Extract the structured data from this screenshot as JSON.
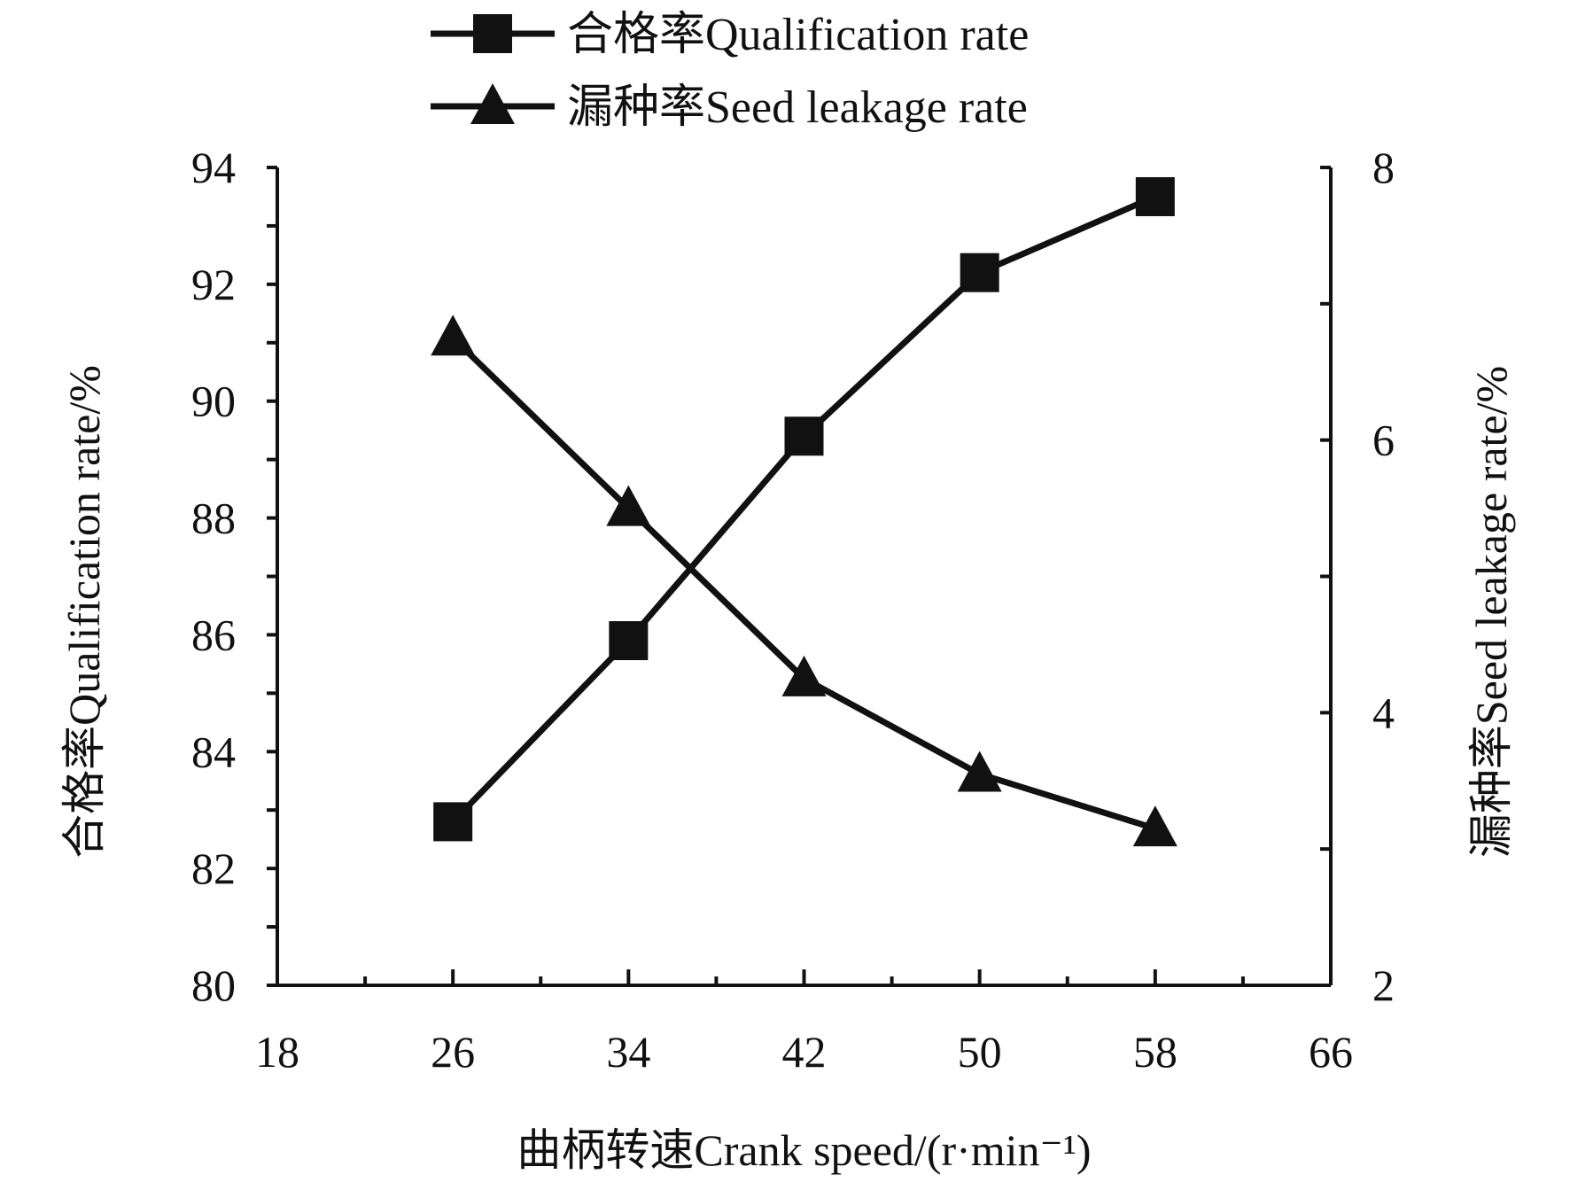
{
  "chart_data": {
    "type": "line",
    "xlabel": "曲柄转速Crank speed/(r·min⁻¹)",
    "ylabel_left": "合格率Qualification rate/%",
    "ylabel_right": "漏种率Seed leakage rate/%",
    "x_ticks": [
      "18",
      "26",
      "34",
      "42",
      "50",
      "58",
      "66"
    ],
    "y_left_ticks": [
      "80",
      "82",
      "84",
      "86",
      "88",
      "90",
      "92",
      "94"
    ],
    "y_right_ticks": [
      "2",
      "4",
      "6",
      "8"
    ],
    "xlim": [
      18,
      66
    ],
    "ylim_left": [
      80,
      94
    ],
    "ylim_right": [
      2,
      8
    ],
    "grid": false,
    "legend_position": "top-center",
    "x": [
      26,
      34,
      42,
      50,
      58
    ],
    "series": [
      {
        "name": "合格率Qualification rate",
        "axis": "left",
        "marker": "square",
        "values": [
          82.8,
          85.9,
          89.4,
          92.2,
          93.5
        ]
      },
      {
        "name": "漏种率Seed leakage rate",
        "axis": "right",
        "marker": "triangle",
        "values": [
          6.75,
          5.5,
          4.25,
          3.55,
          3.15
        ]
      }
    ],
    "colors": {
      "line": "#111111",
      "axis": "#111111",
      "background": "#ffffff"
    }
  }
}
